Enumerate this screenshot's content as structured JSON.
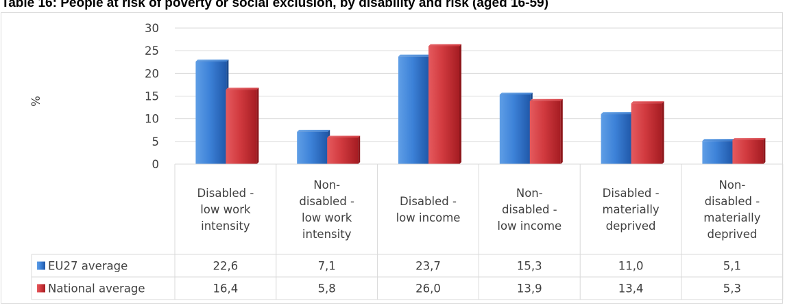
{
  "title": "Table 16: People at risk of poverty or social exclusion, by disability and risk (aged 16-59)",
  "chart_data": {
    "type": "bar",
    "ylabel": "%",
    "ylim": [
      0,
      30
    ],
    "yticks": [
      0,
      5,
      10,
      15,
      20,
      25,
      30
    ],
    "grid": true,
    "legend": "data-table-left",
    "categories": [
      [
        "Disabled -",
        "low work",
        "intensity"
      ],
      [
        "Non-",
        "disabled -",
        "low work",
        "intensity"
      ],
      [
        "Disabled -",
        "low income"
      ],
      [
        "Non-",
        "disabled -",
        "low income"
      ],
      [
        "Disabled -",
        "materially",
        "deprived"
      ],
      [
        "Non-",
        "disabled -",
        "materially",
        "deprived"
      ]
    ],
    "series": [
      {
        "name": "EU27 average",
        "color": "#2e6fc4",
        "values": [
          22.6,
          7.1,
          23.7,
          15.3,
          11.0,
          5.1
        ],
        "labels": [
          "22,6",
          "7,1",
          "23,7",
          "15,3",
          "11,0",
          "5,1"
        ]
      },
      {
        "name": "National average",
        "color": "#c4252b",
        "values": [
          16.4,
          5.8,
          26.0,
          13.9,
          13.4,
          5.3
        ],
        "labels": [
          "16,4",
          "5,8",
          "26,0",
          "13,9",
          "13,4",
          "5,3"
        ]
      }
    ]
  }
}
